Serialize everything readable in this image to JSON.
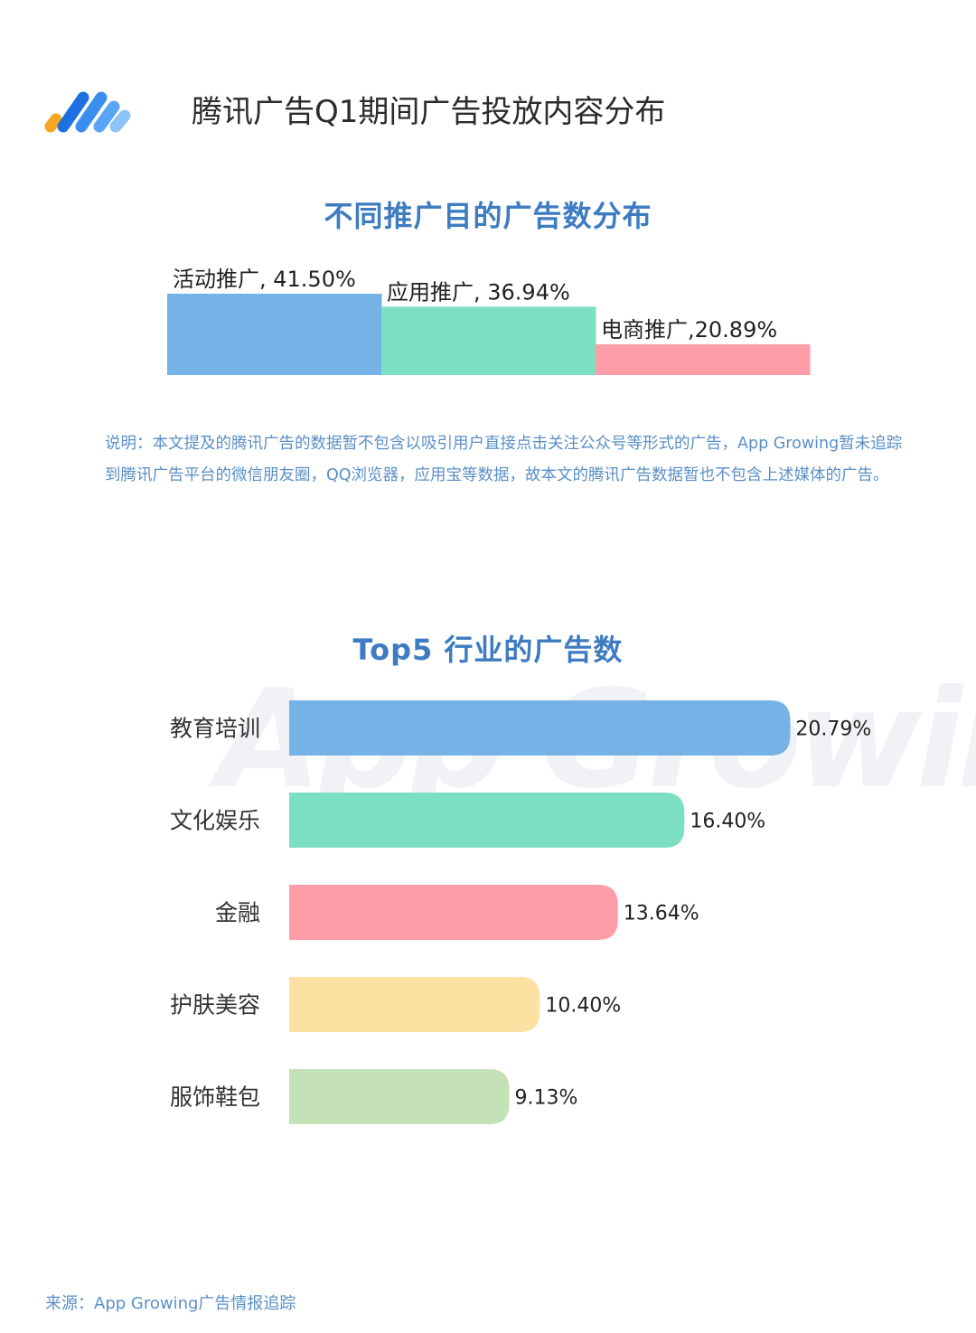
{
  "header": {
    "title": "腾讯广告Q1期间广告投放内容分布",
    "logo_colors": [
      "#f5a623",
      "#1e6fe0",
      "#3a8ef0",
      "#5aa5f5",
      "#8cc4f8"
    ]
  },
  "note": "说明：本文提及的腾讯广告的数据暂不包含以吸引用户直接点击关注公众号等形式的广告，App Growing暂未追踪到腾讯广告平台的微信朋友圈，QQ浏览器，应用宝等数据，故本文的腾讯广告数据暂也不包含上述媒体的广告。",
  "watermark": "App Growing",
  "source": "来源：App Growing广告情报追踪",
  "chart_data": [
    {
      "type": "bar",
      "orientation": "marimekko",
      "title": "不同推广目的广告数分布",
      "categories": [
        "活动推广",
        "应用推广",
        "电商推广"
      ],
      "values": [
        41.5,
        36.94,
        20.89
      ],
      "labels": [
        "活动推广, 41.50%",
        "应用推广, 36.94%",
        "电商推广,20.89%"
      ],
      "colors": [
        "#75b3e6",
        "#7ddfc1",
        "#fd9da8"
      ]
    },
    {
      "type": "bar",
      "orientation": "horizontal",
      "title": "Top5 行业的广告数",
      "categories": [
        "教育培训",
        "文化娱乐",
        "金融",
        "护肤美容",
        "服饰鞋包"
      ],
      "values": [
        20.79,
        16.4,
        13.64,
        10.4,
        9.13
      ],
      "labels": [
        "20.79%",
        "16.40%",
        "13.64%",
        "10.40%",
        "9.13%"
      ],
      "colors": [
        "#75b3e6",
        "#7ddfc1",
        "#fd9da8",
        "#fce1a3",
        "#c4e2b5"
      ],
      "xlim": [
        0,
        21
      ]
    }
  ]
}
